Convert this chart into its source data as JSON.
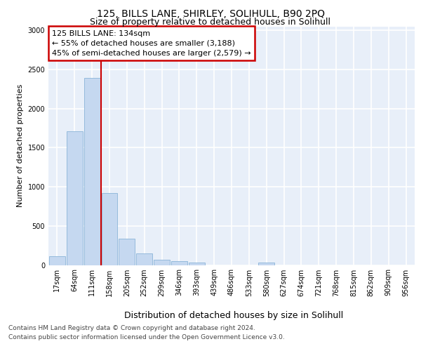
{
  "title1": "125, BILLS LANE, SHIRLEY, SOLIHULL, B90 2PQ",
  "title2": "Size of property relative to detached houses in Solihull",
  "xlabel": "Distribution of detached houses by size in Solihull",
  "ylabel": "Number of detached properties",
  "bar_color": "#c5d8f0",
  "bar_edge_color": "#8ab4d8",
  "bin_labels": [
    "17sqm",
    "64sqm",
    "111sqm",
    "158sqm",
    "205sqm",
    "252sqm",
    "299sqm",
    "346sqm",
    "393sqm",
    "439sqm",
    "486sqm",
    "533sqm",
    "580sqm",
    "627sqm",
    "674sqm",
    "721sqm",
    "768sqm",
    "815sqm",
    "862sqm",
    "909sqm",
    "956sqm"
  ],
  "bar_values": [
    110,
    1710,
    2390,
    920,
    340,
    150,
    70,
    50,
    30,
    0,
    0,
    0,
    30,
    0,
    0,
    0,
    0,
    0,
    0,
    0,
    0
  ],
  "red_line_x": 2.5,
  "annotation_text": "125 BILLS LANE: 134sqm\n← 55% of detached houses are smaller (3,188)\n45% of semi-detached houses are larger (2,579) →",
  "annotation_box_color": "#ffffff",
  "annotation_border_color": "#cc0000",
  "ylim": [
    0,
    3050
  ],
  "yticks": [
    0,
    500,
    1000,
    1500,
    2000,
    2500,
    3000
  ],
  "footer1": "Contains HM Land Registry data © Crown copyright and database right 2024.",
  "footer2": "Contains public sector information licensed under the Open Government Licence v3.0.",
  "bg_color": "#e8eff9",
  "grid_color": "#ffffff",
  "title1_fontsize": 10,
  "title2_fontsize": 9,
  "xlabel_fontsize": 9,
  "ylabel_fontsize": 8,
  "tick_fontsize": 7,
  "annotation_fontsize": 8,
  "footer_fontsize": 6.5
}
